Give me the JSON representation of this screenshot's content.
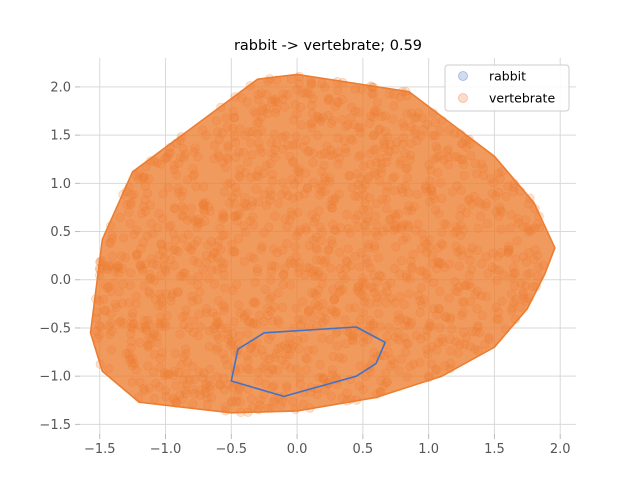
{
  "chart_data": {
    "type": "scatter",
    "title": "rabbit -> vertebrate; 0.59",
    "xlabel": "",
    "ylabel": "",
    "xlim": [
      -1.65,
      2.12
    ],
    "ylim": [
      -1.6,
      2.3
    ],
    "x_ticks": [
      -1.5,
      -1.0,
      -0.5,
      0.0,
      0.5,
      1.0,
      1.5,
      2.0
    ],
    "x_tick_labels": [
      "−1.5",
      "−1.0",
      "−0.5",
      "0.0",
      "0.5",
      "1.0",
      "1.5",
      "2.0"
    ],
    "y_ticks": [
      -1.5,
      -1.0,
      -0.5,
      0.0,
      0.5,
      1.0,
      1.5,
      2.0
    ],
    "y_tick_labels": [
      "−1.5",
      "−1.0",
      "−0.5",
      "0.0",
      "0.5",
      "1.0",
      "1.5",
      "2.0"
    ],
    "grid": true,
    "legend_position": "top-right",
    "series": [
      {
        "name": "rabbit",
        "color": "#4472C4",
        "hull": [
          [
            -0.5,
            -1.05
          ],
          [
            -0.1,
            -1.21
          ],
          [
            0.45,
            -1.0
          ],
          [
            0.6,
            -0.87
          ],
          [
            0.67,
            -0.65
          ],
          [
            0.45,
            -0.49
          ],
          [
            -0.25,
            -0.55
          ],
          [
            -0.45,
            -0.72
          ]
        ]
      },
      {
        "name": "vertebrate",
        "color": "#ED7D31",
        "hull": [
          [
            -1.25,
            1.12
          ],
          [
            -0.3,
            2.08
          ],
          [
            0.0,
            2.13
          ],
          [
            0.85,
            1.95
          ],
          [
            1.5,
            1.28
          ],
          [
            1.8,
            0.8
          ],
          [
            1.96,
            0.33
          ],
          [
            1.88,
            0.05
          ],
          [
            1.75,
            -0.3
          ],
          [
            1.5,
            -0.7
          ],
          [
            1.1,
            -1.0
          ],
          [
            0.6,
            -1.22
          ],
          [
            0.0,
            -1.36
          ],
          [
            -0.5,
            -1.38
          ],
          [
            -1.2,
            -1.27
          ],
          [
            -1.48,
            -0.95
          ],
          [
            -1.57,
            -0.55
          ],
          [
            -1.48,
            0.42
          ]
        ]
      }
    ]
  }
}
